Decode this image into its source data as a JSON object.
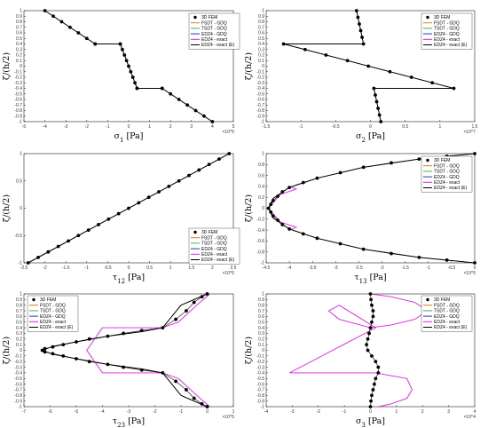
{
  "legend_labels": [
    "3D FEM",
    "FSDT - GDQ",
    "TSDT - GDQ",
    "EDZ4 - GDQ",
    "EDZ4 - exact",
    "EDZ4 - exact (E)"
  ],
  "colors": {
    "fem": "#000000",
    "fsdt": "#e8751a",
    "tsdt": "#4caf50",
    "edz4_gdq": "#2233cc",
    "edz4_exact": "#e020e0",
    "edz4_exact_e": "#000000"
  },
  "chart_data": [
    {
      "type": "line",
      "xlabel": "σ1 [Pa]",
      "ylabel": "ζ/(h/2)",
      "x_exponent": "×10^5",
      "xlim": [
        -5,
        5
      ],
      "ylim": [
        -1,
        1
      ],
      "x_ticks": [
        "-5",
        "-4",
        "-3",
        "-2",
        "-1",
        "0",
        "1",
        "2",
        "3",
        "4",
        "5"
      ],
      "y_ticks": [
        "-1",
        "-0.9",
        "-0.8",
        "-0.7",
        "-0.6",
        "-0.5",
        "-0.4",
        "-0.3",
        "-0.2",
        "-0.1",
        "0",
        "0.1",
        "0.2",
        "0.3",
        "0.4",
        "0.5",
        "0.6",
        "0.7",
        "0.8",
        "0.9",
        "1"
      ],
      "legend_position": "top-right",
      "legend_labels": [
        "3D FEM",
        "FSDT - GDQ",
        "TSDT - GDQ",
        "EDZ4 - GDQ",
        "EDZ4 - exact",
        "EDZ4 - exact (E)"
      ],
      "series": [
        {
          "name": "EDZ4 - exact (E)",
          "x": [
            -4,
            -1.6,
            -0.4,
            0.4,
            1.6,
            4
          ],
          "y": [
            1,
            0.4,
            0.4,
            -0.4,
            -0.4,
            -1
          ]
        },
        {
          "name": "3D FEM",
          "x": [
            -4,
            -3.6,
            -3.2,
            -2.8,
            -2.4,
            -2.0,
            -1.6,
            -1.6,
            -0.4,
            -0.4,
            -0.3,
            -0.2,
            -0.1,
            0,
            0.1,
            0.2,
            0.3,
            0.4,
            0.4,
            1.6,
            1.6,
            2.0,
            2.4,
            2.8,
            3.2,
            3.6,
            4
          ],
          "y": [
            1,
            0.9,
            0.8,
            0.7,
            0.6,
            0.5,
            0.4,
            0.4,
            0.4,
            0.4,
            0.3,
            0.2,
            0.1,
            0,
            -0.1,
            -0.2,
            -0.3,
            -0.4,
            -0.4,
            -0.4,
            -0.4,
            -0.5,
            -0.6,
            -0.7,
            -0.8,
            -0.9,
            -1
          ]
        }
      ]
    },
    {
      "type": "line",
      "xlabel": "σ2 [Pa]",
      "ylabel": "ζ/(h/2)",
      "x_exponent": "×10^7",
      "xlim": [
        -1.5,
        1.5
      ],
      "ylim": [
        -1,
        1
      ],
      "x_ticks": [
        "-1.5",
        "-1",
        "-0.5",
        "0",
        "0.5",
        "1",
        "1.5"
      ],
      "y_ticks": [
        "-1",
        "-0.9",
        "-0.8",
        "-0.7",
        "-0.6",
        "-0.5",
        "-0.4",
        "-0.3",
        "-0.2",
        "-0.1",
        "0",
        "0.1",
        "0.2",
        "0.3",
        "0.4",
        "0.5",
        "0.6",
        "0.7",
        "0.8",
        "0.9",
        "1"
      ],
      "legend_position": "top-right",
      "legend_labels": [
        "3D FEM",
        "FSDT - GDQ",
        "TSDT - GDQ",
        "EDZ4 - GDQ",
        "EDZ4 - exact",
        "EDZ4 - exact (E)"
      ],
      "series": [
        {
          "name": "EDZ4 - exact (E)",
          "x": [
            -0.2,
            -0.1,
            -1.25,
            1.2,
            0.05,
            0.15
          ],
          "y": [
            1,
            0.4,
            0.4,
            -0.4,
            -0.4,
            -1
          ]
        },
        {
          "name": "3D FEM",
          "x": [
            -0.2,
            -0.18,
            -0.16,
            -0.14,
            -0.12,
            -0.1,
            -1.25,
            -0.94,
            -0.64,
            -0.33,
            -0.03,
            0.28,
            0.59,
            0.89,
            1.2,
            0.05,
            0.07,
            0.09,
            0.11,
            0.13,
            0.15
          ],
          "y": [
            1,
            0.88,
            0.76,
            0.64,
            0.52,
            0.4,
            0.4,
            0.3,
            0.2,
            0.1,
            0,
            -0.1,
            -0.2,
            -0.3,
            -0.4,
            -0.4,
            -0.52,
            -0.64,
            -0.76,
            -0.88,
            -1
          ]
        }
      ]
    },
    {
      "type": "line",
      "xlabel": "τ12 [Pa]",
      "ylabel": "ζ/(h/2)",
      "x_exponent": "×10^5",
      "xlim": [
        -2.5,
        2.5
      ],
      "ylim": [
        -1,
        1
      ],
      "x_ticks": [
        "-2.5",
        "-2",
        "-1.5",
        "-1",
        "-0.5",
        "0",
        "0.5",
        "1",
        "1.5",
        "2",
        "2.5"
      ],
      "y_ticks": [
        "-1",
        "-0.5",
        "0",
        "0.5",
        "1"
      ],
      "legend_position": "center-right",
      "legend_labels": [
        "3D FEM",
        "FSDT - GDQ",
        "TSDT - GDQ",
        "EDZ4 - GDQ",
        "EDZ4 - exact",
        "EDZ4 - exact (E)"
      ],
      "series": [
        {
          "name": "EDZ4 - exact (E)",
          "x": [
            -2.4,
            2.4
          ],
          "y": [
            -1,
            1
          ]
        },
        {
          "name": "3D FEM",
          "x": [
            -2.4,
            -2.16,
            -1.92,
            -1.68,
            -1.44,
            -1.2,
            -0.96,
            -0.72,
            -0.48,
            -0.24,
            0,
            0.24,
            0.48,
            0.72,
            0.96,
            1.2,
            1.44,
            1.68,
            1.92,
            2.16,
            2.4
          ],
          "y": [
            -1,
            -0.9,
            -0.8,
            -0.7,
            -0.6,
            -0.5,
            -0.4,
            -0.3,
            -0.2,
            -0.1,
            0,
            0.1,
            0.2,
            0.3,
            0.4,
            0.5,
            0.6,
            0.7,
            0.8,
            0.9,
            1
          ]
        }
      ]
    },
    {
      "type": "line",
      "xlabel": "τ13 [Pa]",
      "ylabel": "ζ/(h/2)",
      "x_exponent": "×10^5",
      "xlim": [
        -4.5,
        0
      ],
      "ylim": [
        -1,
        1
      ],
      "x_ticks": [
        "-4.5",
        "-4",
        "-3.5",
        "-3",
        "-2.5",
        "-2",
        "-1.5",
        "-1",
        "-0.5",
        "0"
      ],
      "y_ticks": [
        "-1",
        "-0.8",
        "-0.6",
        "-0.4",
        "-0.2",
        "0",
        "0.2",
        "0.4",
        "0.6",
        "0.8",
        "1"
      ],
      "legend_position": "top-right",
      "legend_labels": [
        "3D FEM",
        "FSDT - GDQ",
        "TSDT - GDQ",
        "EDZ4 - GDQ",
        "EDZ4 - exact",
        "EDZ4 - exact (E)"
      ],
      "series": [
        {
          "name": "EDZ4 - exact (E)",
          "x": [
            0,
            -1.2,
            -2.4,
            -3.4,
            -4.0,
            -4.35,
            -4.45,
            -4.35,
            -4.0,
            -3.4,
            -2.4,
            -1.2,
            0
          ],
          "y": [
            1,
            0.9,
            0.75,
            0.55,
            0.38,
            0.18,
            0,
            -0.18,
            -0.38,
            -0.55,
            -0.75,
            -0.9,
            -1
          ]
        },
        {
          "name": "EDZ4 - exact",
          "x": [
            -4.0,
            -3.85,
            -4.2,
            -4.45,
            -4.2,
            -3.85,
            -4.0
          ],
          "y": [
            0.4,
            0.35,
            0.25,
            0,
            -0.25,
            -0.35,
            -0.4
          ]
        },
        {
          "name": "3D FEM",
          "x": [
            0,
            -0.6,
            -1.2,
            -1.8,
            -2.4,
            -2.9,
            -3.4,
            -3.7,
            -4.0,
            -4.15,
            -4.25,
            -4.35,
            -4.4,
            -4.45,
            -4.4,
            -4.35,
            -4.25,
            -4.15,
            -4.0,
            -3.7,
            -3.4,
            -2.9,
            -2.4,
            -1.8,
            -1.2,
            -0.6,
            0
          ],
          "y": [
            1,
            0.95,
            0.9,
            0.83,
            0.75,
            0.65,
            0.55,
            0.47,
            0.38,
            0.3,
            0.22,
            0.14,
            0.07,
            0,
            -0.07,
            -0.14,
            -0.22,
            -0.3,
            -0.38,
            -0.47,
            -0.55,
            -0.65,
            -0.75,
            -0.83,
            -0.9,
            -0.95,
            -1
          ]
        }
      ]
    },
    {
      "type": "line",
      "xlabel": "τ23 [Pa]",
      "ylabel": "ζ/(h/2)",
      "x_exponent": "×10^5",
      "xlim": [
        -7,
        1
      ],
      "ylim": [
        -1,
        1
      ],
      "x_ticks": [
        "-7",
        "-6",
        "-5",
        "-4",
        "-3",
        "-2",
        "-1",
        "0",
        "1"
      ],
      "y_ticks": [
        "-1",
        "-0.9",
        "-0.8",
        "-0.7",
        "-0.6",
        "-0.5",
        "-0.4",
        "-0.3",
        "-0.2",
        "-0.1",
        "0",
        "0.1",
        "0.2",
        "0.3",
        "0.4",
        "0.5",
        "0.6",
        "0.7",
        "0.8",
        "0.9",
        "1"
      ],
      "legend_position": "top-left",
      "legend_labels": [
        "3D FEM",
        "FSDT - GDQ",
        "TSDT - GDQ",
        "EDZ4 - GDQ",
        "EDZ4 - exact",
        "EDZ4 - exact (E)"
      ],
      "series": [
        {
          "name": "EDZ4 - exact (E)",
          "x": [
            0,
            -1.0,
            -1.7,
            -2.5,
            -3.8,
            -5.0,
            -5.9,
            -6.3,
            -5.9,
            -5.0,
            -3.8,
            -2.5,
            -1.7,
            -1.0,
            0
          ],
          "y": [
            1,
            0.8,
            0.4,
            0.33,
            0.25,
            0.15,
            0.07,
            0,
            -0.07,
            -0.15,
            -0.25,
            -0.33,
            -0.4,
            -0.8,
            -1
          ]
        },
        {
          "name": "EDZ4 - exact",
          "x": [
            0.1,
            -0.4,
            -1.1,
            -1.7,
            -4.0,
            -4.3,
            -4.6,
            -4.3,
            -4.0,
            -1.7,
            -1.1,
            -0.4,
            0.1
          ],
          "y": [
            1,
            0.8,
            0.5,
            0.4,
            0.4,
            0.2,
            0,
            -0.2,
            -0.4,
            -0.4,
            -0.5,
            -0.8,
            -1
          ]
        },
        {
          "name": "3D FEM",
          "x": [
            0,
            -0.2,
            -0.5,
            -0.8,
            -1.2,
            -1.7,
            -2.5,
            -3.2,
            -3.8,
            -4.5,
            -5.0,
            -5.5,
            -5.9,
            -6.2,
            -6.3,
            -6.2,
            -5.9,
            -5.5,
            -5.0,
            -4.5,
            -3.8,
            -3.2,
            -2.5,
            -1.7,
            -1.2,
            -0.8,
            -0.5,
            -0.2,
            0
          ],
          "y": [
            1,
            0.95,
            0.85,
            0.7,
            0.55,
            0.4,
            0.35,
            0.3,
            0.25,
            0.2,
            0.15,
            0.1,
            0.06,
            0.03,
            0,
            -0.03,
            -0.06,
            -0.1,
            -0.15,
            -0.2,
            -0.25,
            -0.3,
            -0.35,
            -0.4,
            -0.55,
            -0.7,
            -0.85,
            -0.95,
            -1
          ]
        }
      ]
    },
    {
      "type": "line",
      "xlabel": "σ3 [Pa]",
      "ylabel": "ζ/(h/2)",
      "x_exponent": "×10^4",
      "xlim": [
        -4,
        4
      ],
      "ylim": [
        -1,
        1
      ],
      "x_ticks": [
        "-4",
        "-3",
        "-2",
        "-1",
        "0",
        "1",
        "2",
        "3",
        "4"
      ],
      "y_ticks": [
        "-1",
        "-0.9",
        "-0.8",
        "-0.7",
        "-0.6",
        "-0.5",
        "-0.4",
        "-0.3",
        "-0.2",
        "-0.1",
        "0",
        "0.1",
        "0.2",
        "0.3",
        "0.4",
        "0.5",
        "0.6",
        "0.7",
        "0.8",
        "0.9",
        "1"
      ],
      "legend_position": "top-right",
      "legend_labels": [
        "3D FEM",
        "FSDT - GDQ",
        "TSDT - GDQ",
        "EDZ4 - GDQ",
        "EDZ4 - exact",
        "EDZ4 - exact (E)"
      ],
      "series": [
        {
          "name": "EDZ4 - exact",
          "x": [
            0,
            0.8,
            1.7,
            2.2,
            1.7,
            0.8,
            0,
            -1.2,
            -1.6,
            -1.2,
            0.2,
            0.2,
            -3.1,
            0.2,
            1.4,
            1.6,
            1.4,
            0.8,
            0.3
          ],
          "y": [
            1,
            0.95,
            0.85,
            0.7,
            0.55,
            0.45,
            0.4,
            0.55,
            0.7,
            0.8,
            0.4,
            0.4,
            -0.4,
            -0.4,
            -0.5,
            -0.7,
            -0.85,
            -0.95,
            -1
          ]
        },
        {
          "name": "3D FEM",
          "x": [
            0,
            0.02,
            0.05,
            0.1,
            0.1,
            0.05,
            0,
            -0.05,
            -0.1,
            -0.15,
            -0.1,
            0.05,
            0.2,
            0.3,
            0.3,
            0.2,
            0.15,
            0.1,
            0.05,
            0.02,
            0
          ],
          "y": [
            1,
            0.9,
            0.8,
            0.7,
            0.6,
            0.5,
            0.4,
            0.3,
            0.2,
            0.1,
            0,
            -0.1,
            -0.2,
            -0.3,
            -0.4,
            -0.5,
            -0.6,
            -0.7,
            -0.8,
            -0.9,
            -1
          ]
        }
      ]
    }
  ]
}
